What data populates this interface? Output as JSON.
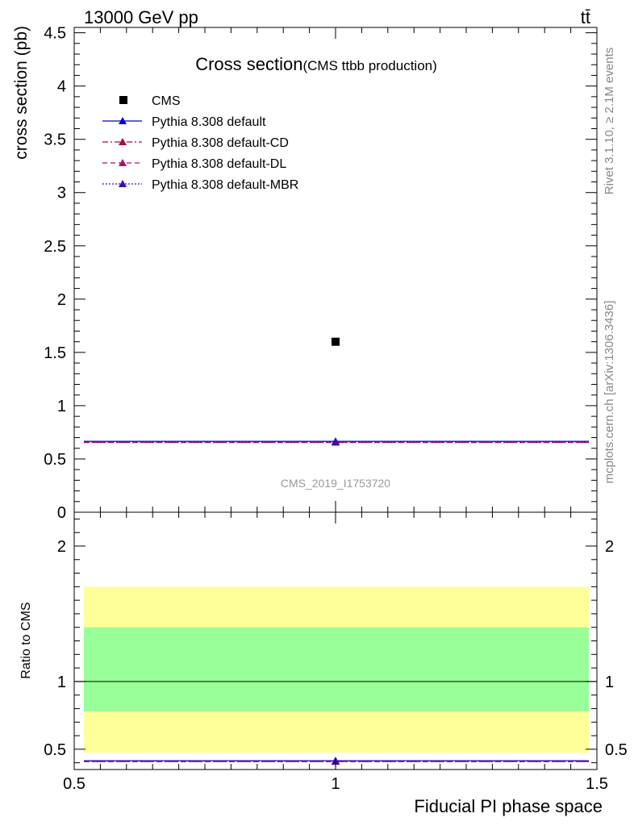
{
  "header": {
    "energy_label": "13000 GeV pp",
    "process_label": "tt̄"
  },
  "side_labels": {
    "rivet": "Rivet 3.1.10, ≥ 2.1M events",
    "mcplots": "mcplots.cern.ch [arXiv:1306.3436]"
  },
  "chart_data": {
    "type": "scatter",
    "title": "Cross section",
    "subtitle": "(CMS ttbb production)",
    "analysis_id": "CMS_2019_I1753720",
    "xlabel": "Fiducial PI phase space",
    "xlim": [
      0.5,
      1.5
    ],
    "x_ticks": [
      "0.5",
      "1",
      "1.5"
    ],
    "main": {
      "ylabel": "cross section (pb)",
      "ylim": [
        0,
        4.55
      ],
      "y_ticks": [
        "0",
        "0.5",
        "1",
        "1.5",
        "2",
        "2.5",
        "3",
        "3.5",
        "4",
        "4.5"
      ],
      "legend_position": "top-left",
      "data": {
        "name": "CMS",
        "x": 1.0,
        "y": 1.6
      },
      "series": [
        {
          "name": "Pythia 8.308 default",
          "x": [
            0.5,
            1.5
          ],
          "y": 0.665,
          "marker_x": 1.0,
          "color": "#0000cc",
          "dash": "solid"
        },
        {
          "name": "Pythia 8.308 default-CD",
          "x": [
            0.5,
            1.5
          ],
          "y": 0.655,
          "marker_x": 1.0,
          "color": "#a01040",
          "dash": "dashdot"
        },
        {
          "name": "Pythia 8.308 default-DL",
          "x": [
            0.5,
            1.5
          ],
          "y": 0.655,
          "marker_x": 1.0,
          "color": "#b0106a",
          "dash": "dashed"
        },
        {
          "name": "Pythia 8.308 default-MBR",
          "x": [
            0.5,
            1.5
          ],
          "y": 0.66,
          "marker_x": 1.0,
          "color": "#3a10aa",
          "dash": "dotted"
        }
      ]
    },
    "ratio": {
      "ylabel": "Ratio to CMS",
      "ylim": [
        0.35,
        2.25
      ],
      "y_ticks": [
        "0.5",
        "1",
        "2"
      ],
      "reference": 1.0,
      "bands": [
        {
          "low": 0.475,
          "high": 1.7,
          "color": "#ffff99"
        },
        {
          "low": 0.78,
          "high": 1.4,
          "color": "#99ff99"
        }
      ],
      "series_values": [
        0.415,
        0.409,
        0.409,
        0.4125
      ]
    }
  }
}
